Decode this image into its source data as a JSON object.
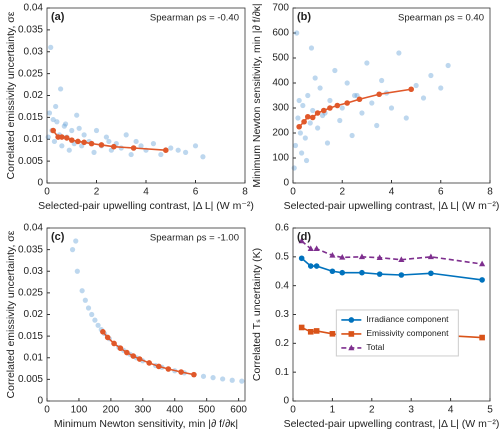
{
  "chart_data": [
    {
      "type": "scatter",
      "panel_label": "(a)",
      "annotation": "Spearman ρs = -0.40",
      "xlabel": "Selected-pair upwelling contrast, |Δ L| (W m⁻²)",
      "ylabel": "Correlated emissivity uncertainty, σε",
      "xlim": [
        0,
        8
      ],
      "xticks": [
        0,
        2,
        4,
        6,
        8
      ],
      "ylim": [
        0,
        0.04
      ],
      "yticks": [
        0,
        0.005,
        0.01,
        0.015,
        0.02,
        0.025,
        0.03,
        0.035,
        0.04
      ],
      "series": [
        {
          "color": "#5b9bd5",
          "line": false,
          "marker": "circle",
          "x": [
            0.1,
            0.2,
            0.3,
            0.4,
            0.5,
            0.6,
            0.7,
            0.8,
            0.9,
            1.0,
            1.1,
            1.2,
            1.4,
            1.5,
            1.7,
            1.9,
            2.0,
            2.2,
            2.4,
            2.6,
            2.8,
            3.0,
            3.2,
            3.4,
            3.6,
            3.8,
            4.0,
            4.3,
            4.6,
            5.0,
            5.3,
            5.6,
            6.0,
            6.3,
            0.15,
            0.35,
            0.55,
            0.75,
            1.3,
            2.5,
            0.05,
            0.25
          ],
          "values": [
            0.016,
            0.012,
            0.0095,
            0.014,
            0.011,
            0.0085,
            0.013,
            0.0105,
            0.0075,
            0.012,
            0.009,
            0.0155,
            0.0085,
            0.011,
            0.0095,
            0.007,
            0.012,
            0.0085,
            0.0105,
            0.0075,
            0.009,
            0.008,
            0.011,
            0.0065,
            0.0095,
            0.0085,
            0.0075,
            0.009,
            0.0065,
            0.008,
            0.0075,
            0.007,
            0.0085,
            0.006,
            0.031,
            0.0175,
            0.0215,
            0.0135,
            0.0125,
            0.0095,
            0.0105,
            0.0145
          ]
        },
        {
          "color": "#e0582a",
          "line": true,
          "marker": "circle",
          "x": [
            0.25,
            0.45,
            0.6,
            0.8,
            1.0,
            1.25,
            1.5,
            1.8,
            2.2,
            2.7,
            3.5,
            4.8
          ],
          "values": [
            0.012,
            0.0105,
            0.0105,
            0.0103,
            0.0098,
            0.0095,
            0.0093,
            0.009,
            0.0087,
            0.0083,
            0.008,
            0.0075
          ]
        }
      ]
    },
    {
      "type": "scatter",
      "panel_label": "(b)",
      "annotation": "Spearman ρs = 0.40",
      "xlabel": "Selected-pair upwelling contrast, |Δ L| (W m⁻²)",
      "ylabel": "Minimum Newton sensitivity, min |∂ f/∂κ|",
      "xlim": [
        0,
        8
      ],
      "xticks": [
        0,
        2,
        4,
        6,
        8
      ],
      "ylim": [
        0,
        700
      ],
      "yticks": [
        0,
        100,
        200,
        300,
        400,
        500,
        600,
        700
      ],
      "series": [
        {
          "color": "#5b9bd5",
          "line": false,
          "marker": "circle",
          "x": [
            0.1,
            0.2,
            0.3,
            0.4,
            0.5,
            0.6,
            0.7,
            0.8,
            0.9,
            1.0,
            1.1,
            1.2,
            1.4,
            1.5,
            1.7,
            1.9,
            2.0,
            2.2,
            2.4,
            2.6,
            2.8,
            3.0,
            3.2,
            3.4,
            3.6,
            3.8,
            4.0,
            4.3,
            4.6,
            5.0,
            5.3,
            5.6,
            6.0,
            6.3,
            0.15,
            0.35,
            0.55,
            0.75,
            1.3,
            2.5,
            0.05,
            0.25
          ],
          "values": [
            150,
            260,
            200,
            310,
            180,
            350,
            240,
            290,
            420,
            220,
            380,
            270,
            160,
            330,
            450,
            250,
            300,
            400,
            190,
            350,
            280,
            480,
            320,
            230,
            410,
            360,
            300,
            520,
            260,
            390,
            340,
            430,
            380,
            470,
            600,
            120,
            90,
            540,
            280,
            350,
            60,
            330
          ]
        },
        {
          "color": "#e0582a",
          "line": true,
          "marker": "circle",
          "x": [
            0.25,
            0.45,
            0.6,
            0.8,
            1.0,
            1.25,
            1.5,
            1.8,
            2.2,
            2.7,
            3.5,
            4.8
          ],
          "values": [
            225,
            245,
            265,
            262,
            280,
            290,
            300,
            310,
            320,
            335,
            355,
            375
          ]
        }
      ]
    },
    {
      "type": "scatter",
      "panel_label": "(c)",
      "annotation": "Spearman ρs = -1.00",
      "xlabel": "Minimum Newton sensitivity, min |∂ f/∂κ|",
      "ylabel": "Correlated emissivity uncertainty, σε",
      "xlim": [
        0,
        620
      ],
      "xticks": [
        0,
        100,
        200,
        300,
        400,
        500,
        600
      ],
      "ylim": [
        0,
        0.04
      ],
      "yticks": [
        0,
        0.005,
        0.01,
        0.015,
        0.02,
        0.025,
        0.03,
        0.035,
        0.04
      ],
      "series": [
        {
          "color": "#5b9bd5",
          "line": false,
          "marker": "circle",
          "x": [
            80,
            90,
            95,
            110,
            120,
            130,
            140,
            150,
            160,
            170,
            180,
            195,
            210,
            225,
            240,
            260,
            280,
            300,
            320,
            340,
            360,
            380,
            400,
            430,
            460,
            490,
            520,
            550,
            580,
            610
          ],
          "values": [
            0.035,
            0.037,
            0.03,
            0.0255,
            0.0233,
            0.0215,
            0.02,
            0.0187,
            0.0175,
            0.0165,
            0.0156,
            0.0144,
            0.0133,
            0.0124,
            0.0117,
            0.0108,
            0.01,
            0.0093,
            0.0088,
            0.0082,
            0.0078,
            0.0074,
            0.007,
            0.0065,
            0.0061,
            0.0057,
            0.0054,
            0.0051,
            0.0048,
            0.0046
          ]
        },
        {
          "color": "#e0582a",
          "line": true,
          "marker": "circle",
          "x": [
            175,
            190,
            210,
            230,
            250,
            270,
            290,
            320,
            350,
            380,
            420,
            460
          ],
          "values": [
            0.016,
            0.0147,
            0.0133,
            0.0122,
            0.0112,
            0.0104,
            0.0097,
            0.0088,
            0.008,
            0.0074,
            0.0067,
            0.0061
          ]
        }
      ]
    },
    {
      "type": "line",
      "panel_label": "(d)",
      "legend": "center",
      "xlabel": "Selected-pair upwelling contrast, |Δ L| (W m⁻²)",
      "ylabel": "Correlated Tₛ uncertainty (K)",
      "xlim": [
        0,
        5
      ],
      "xticks": [
        0,
        1,
        2,
        3,
        4,
        5
      ],
      "ylim": [
        0,
        0.6
      ],
      "yticks": [
        0,
        0.1,
        0.2,
        0.3,
        0.4,
        0.5,
        0.6
      ],
      "series": [
        {
          "name": "Irradiance component",
          "color": "#0072bd",
          "line": true,
          "marker": "circle",
          "x": [
            0.22,
            0.45,
            0.6,
            1.0,
            1.25,
            1.75,
            2.2,
            2.75,
            3.5,
            4.8
          ],
          "values": [
            0.495,
            0.468,
            0.468,
            0.45,
            0.445,
            0.445,
            0.44,
            0.437,
            0.443,
            0.42
          ]
        },
        {
          "name": "Emissivity component",
          "color": "#d95319",
          "line": true,
          "marker": "square",
          "x": [
            0.22,
            0.45,
            0.6,
            1.0,
            1.25,
            1.75,
            2.2,
            2.75,
            3.5,
            4.8
          ],
          "values": [
            0.255,
            0.24,
            0.243,
            0.233,
            0.228,
            0.228,
            0.23,
            0.225,
            0.23,
            0.22
          ]
        },
        {
          "name": "Total",
          "color": "#7e2f8e",
          "line": true,
          "dash": true,
          "marker": "triangle",
          "x": [
            0.22,
            0.45,
            0.6,
            1.0,
            1.25,
            1.75,
            2.2,
            2.75,
            3.5,
            4.8
          ],
          "values": [
            0.555,
            0.528,
            0.528,
            0.505,
            0.498,
            0.5,
            0.497,
            0.49,
            0.5,
            0.475
          ]
        }
      ]
    }
  ]
}
